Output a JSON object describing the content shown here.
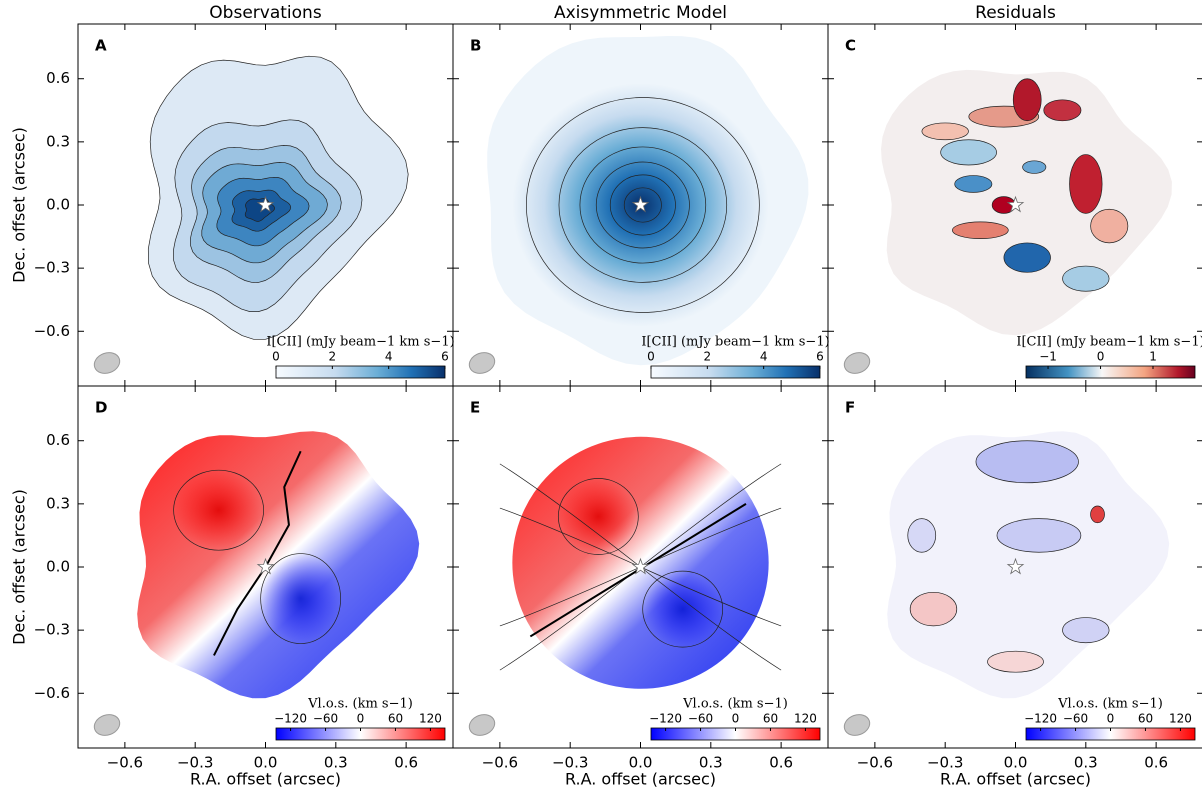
{
  "chart_data": {
    "type": "image-grid",
    "columns": [
      {
        "title": "Observations",
        "xlabel": "R.A. offset (arcsec)",
        "xlim": [
          -0.8,
          0.8
        ],
        "xticks": [
          {
            "value": -0.6,
            "label": "−0.6"
          },
          {
            "value": -0.3,
            "label": "−0.3"
          },
          {
            "value": 0,
            "label": "0.0"
          },
          0.3,
          0.6
        ]
      },
      {
        "title": "Axisymmetric Model",
        "xlabel": "R.A. offset (arcsec)",
        "xlim": [
          -0.8,
          0.8
        ],
        "xticks": [
          {
            "value": -0.6,
            "label": "−0.6"
          },
          {
            "value": -0.3,
            "label": "−0.3"
          },
          {
            "value": 0,
            "label": "0.0"
          },
          0.3,
          0.6
        ]
      },
      {
        "title": "Residuals",
        "xlabel": "R.A. offset (arcsec)",
        "xlim": [
          -0.8,
          0.8
        ],
        "xticks": [
          {
            "value": -0.6,
            "label": "−0.6"
          },
          {
            "value": -0.3,
            "label": "−0.3"
          },
          {
            "value": 0,
            "label": "0.0"
          },
          0.3,
          0.6
        ]
      }
    ],
    "rows": [
      {
        "ylabel": "Dec. offset (arcsec)",
        "ylim": [
          -0.86,
          0.86
        ],
        "yticks": [
          {
            "value": -0.6,
            "label": "−0.6"
          },
          {
            "value": -0.3,
            "label": "−0.3"
          },
          {
            "value": 0,
            "label": "0.0"
          },
          0.3,
          0.6
        ]
      },
      {
        "ylabel": "Dec. offset (arcsec)",
        "ylim": [
          -0.86,
          0.86
        ],
        "yticks": [
          {
            "value": -0.6,
            "label": "−0.6"
          },
          {
            "value": -0.3,
            "label": "−0.3"
          },
          {
            "value": 0,
            "label": "0.0"
          },
          0.3,
          0.6
        ]
      }
    ],
    "panels": [
      {
        "letter": "A",
        "colorbar": {
          "label": "I[CII] (mJy beam−1 km s−1)",
          "colormap": "Blues",
          "lim": [
            0,
            6
          ],
          "ticks": [
            0,
            2,
            4,
            6
          ]
        }
      },
      {
        "letter": "B",
        "colorbar": {
          "label": "I[CII] (mJy beam−1 km s−1)",
          "colormap": "Blues",
          "lim": [
            0,
            6
          ],
          "ticks": [
            0,
            2,
            4,
            6
          ]
        }
      },
      {
        "letter": "C",
        "colorbar": {
          "label": "I[CII] (mJy beam−1 km s−1)",
          "colormap": "RdBu_r",
          "lim": [
            -1.42,
            1.8
          ],
          "ticks": [
            {
              "value": -1,
              "label": "−1"
            },
            0,
            1
          ]
        }
      },
      {
        "letter": "D",
        "colorbar": {
          "label": "Vl.o.s. (km s−1)",
          "colormap": "bwr",
          "lim": [
            -145,
            145
          ],
          "ticks": [
            {
              "value": -120,
              "label": "−120"
            },
            {
              "value": -60,
              "label": "−60"
            },
            0,
            60,
            120
          ]
        }
      },
      {
        "letter": "E",
        "colorbar": {
          "label": "Vl.o.s. (km s−1)",
          "colormap": "bwr",
          "lim": [
            -145,
            145
          ],
          "ticks": [
            {
              "value": -120,
              "label": "−120"
            },
            {
              "value": -60,
              "label": "−60"
            },
            0,
            60,
            120
          ]
        }
      },
      {
        "letter": "F",
        "colorbar": {
          "label": "Vl.o.s. (km s−1)",
          "colormap": "bwr",
          "lim": [
            -145,
            145
          ],
          "ticks": [
            {
              "value": -120,
              "label": "−120"
            },
            {
              "value": -60,
              "label": "−60"
            },
            0,
            60,
            120
          ]
        }
      }
    ]
  }
}
